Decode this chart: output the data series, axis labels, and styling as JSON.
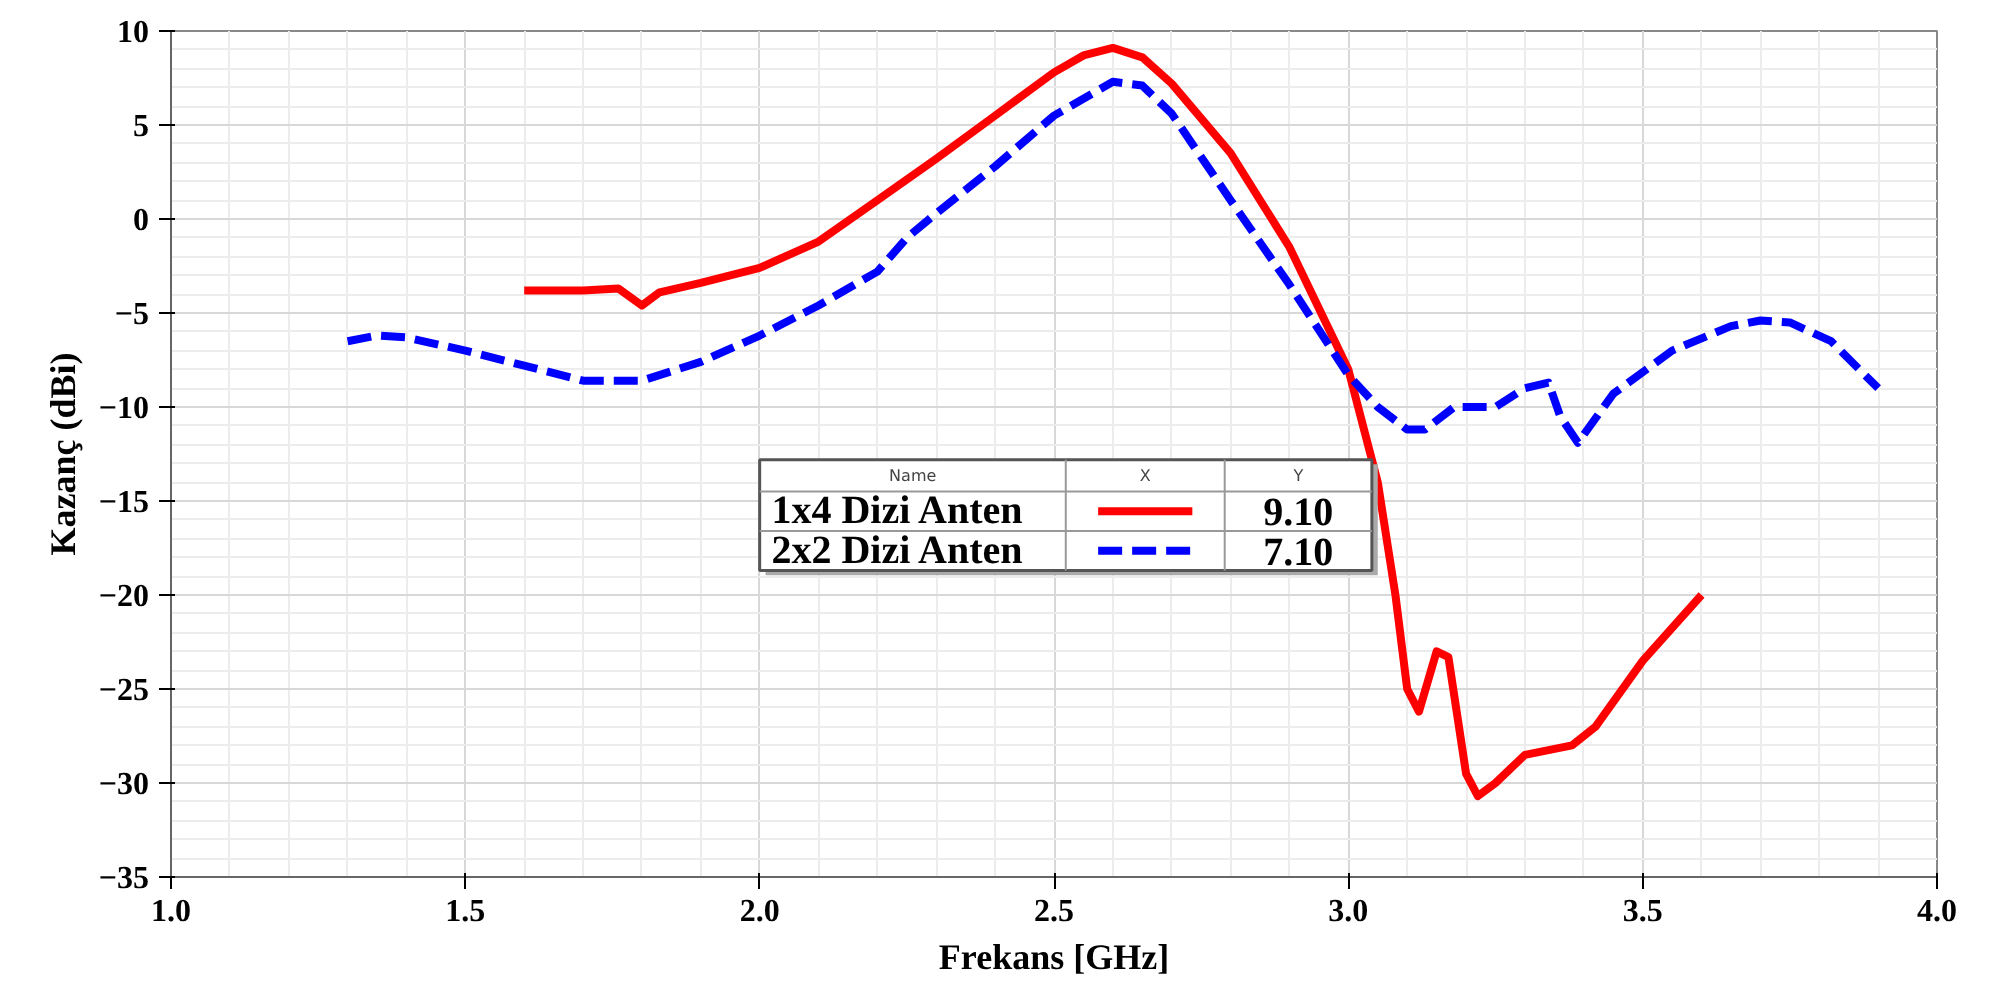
{
  "chart_data": {
    "type": "line",
    "xlabel": "Frekans [GHz]",
    "ylabel": "Kazanç (dBi)",
    "xlim": [
      1.0,
      4.0
    ],
    "xticks": [
      {
        "value": 1.0,
        "label": "1.0"
      },
      1.5,
      {
        "value": 2.0,
        "label": "2.0"
      },
      2.5,
      {
        "value": 3.0,
        "label": "3.0"
      },
      3.5,
      {
        "value": 4.0,
        "label": "4.0"
      }
    ],
    "ylim": [
      -35,
      10
    ],
    "yticks": [
      -35,
      -30,
      -25,
      -20,
      -15,
      -10,
      -5,
      0,
      5,
      10
    ],
    "grid": true,
    "legend": "center",
    "legend_title": "Name",
    "annotations": [
      "X",
      "Y",
      "9.10",
      "7.10"
    ],
    "series": [
      {
        "name": "1x4 Dizi Anten",
        "color": "#ff0000",
        "line_style": "solid",
        "x": [
          1.6,
          1.7,
          1.76,
          1.8,
          1.83,
          1.9,
          2.0,
          2.1,
          2.2,
          2.3,
          2.4,
          2.5,
          2.55,
          2.6,
          2.65,
          2.7,
          2.8,
          2.9,
          3.0,
          3.05,
          3.08,
          3.1,
          3.12,
          3.15,
          3.17,
          3.2,
          3.22,
          3.25,
          3.3,
          3.38,
          3.42,
          3.5,
          3.6
        ],
        "values": [
          -3.8,
          -3.8,
          -3.7,
          -4.6,
          -3.9,
          -3.4,
          -2.6,
          -1.2,
          1.0,
          3.2,
          5.5,
          7.8,
          8.7,
          9.1,
          8.6,
          7.2,
          3.5,
          -1.5,
          -8,
          -14,
          -20,
          -25,
          -26.2,
          -23,
          -23.3,
          -29.5,
          -30.7,
          -30,
          -28.5,
          -28,
          -27,
          -23.5,
          -20
        ]
      },
      {
        "name": "2x2 Dizi Anten",
        "color": "#0000ff",
        "line_style": "dashed",
        "x": [
          1.3,
          1.35,
          1.4,
          1.5,
          1.6,
          1.7,
          1.8,
          1.9,
          2.0,
          2.1,
          2.2,
          2.25,
          2.3,
          2.4,
          2.5,
          2.6,
          2.65,
          2.7,
          2.8,
          2.9,
          3.0,
          3.05,
          3.1,
          3.13,
          3.18,
          3.25,
          3.3,
          3.34,
          3.36,
          3.39,
          3.45,
          3.55,
          3.65,
          3.7,
          3.75,
          3.82,
          3.9
        ],
        "values": [
          -6.5,
          -6.2,
          -6.3,
          -7.0,
          -7.8,
          -8.6,
          -8.6,
          -7.6,
          -6.2,
          -4.6,
          -2.8,
          -1.0,
          0.3,
          2.8,
          5.5,
          7.3,
          7.1,
          5.6,
          1.0,
          -3.5,
          -8.3,
          -10.0,
          -11.2,
          -11.2,
          -10.0,
          -10.0,
          -9.0,
          -8.7,
          -10.5,
          -11.9,
          -9.3,
          -7.0,
          -5.7,
          -5.4,
          -5.5,
          -6.5,
          -9.0
        ]
      }
    ]
  }
}
